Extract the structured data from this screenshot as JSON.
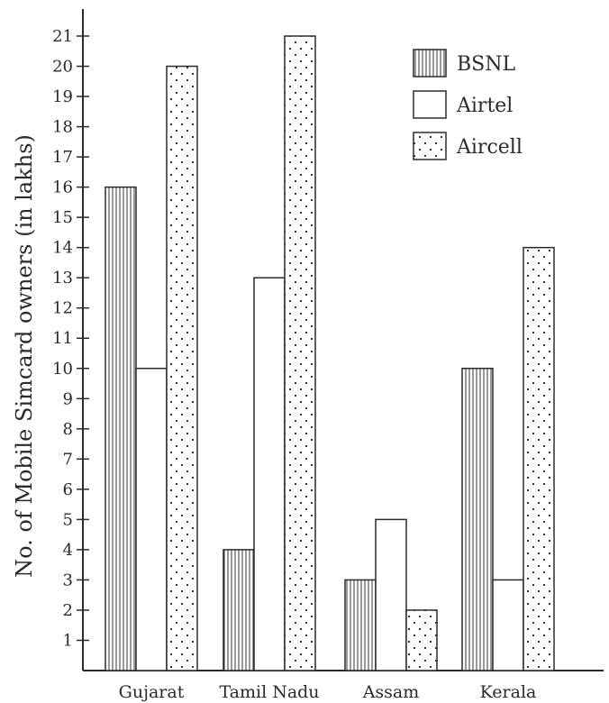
{
  "chart_data": {
    "type": "bar",
    "title": "",
    "ylabel": "No. of Mobile Simcard owners (in lakhs)",
    "xlabel": "",
    "categories": [
      "Gujarat",
      "Tamil Nadu",
      "Assam",
      "Kerala"
    ],
    "series": [
      {
        "name": "BSNL",
        "values": [
          16,
          4,
          3,
          10
        ],
        "pattern": "vertical-stripes"
      },
      {
        "name": "Airtel",
        "values": [
          10,
          13,
          5,
          3
        ],
        "pattern": "plain"
      },
      {
        "name": "Aircell",
        "values": [
          20,
          21,
          2,
          14
        ],
        "pattern": "dots"
      }
    ],
    "ylim": [
      0,
      21
    ],
    "yticks": [
      1,
      2,
      3,
      4,
      5,
      6,
      7,
      8,
      9,
      10,
      11,
      12,
      13,
      14,
      15,
      16,
      17,
      18,
      19,
      20,
      21
    ],
    "grid": false,
    "legend_position": "top-right",
    "colors": {
      "ink": "#2a2a2a",
      "fill": "#ffffff"
    }
  }
}
